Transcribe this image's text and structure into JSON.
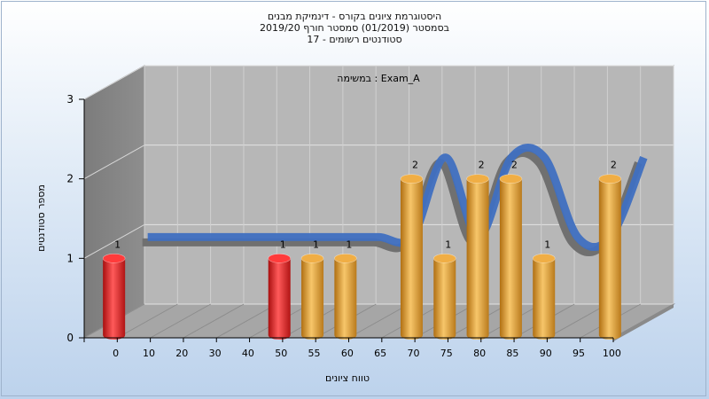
{
  "chart_data": {
    "type": "bar",
    "title_lines": [
      "היסטוגרמת ציונים בקורס - דינמיקת מבנים",
      "בסמסטר  (01/2019)  סמסטר חורף 2019/20",
      "סטודנטים רשומים - 17"
    ],
    "annotation": "Exam_A : במשימה",
    "xlabel": "טווח ציונים",
    "ylabel": "מספר סטודנטים",
    "ylim": [
      0,
      3
    ],
    "yticks": [
      "0",
      "1",
      "2",
      "3"
    ],
    "categories": [
      "0",
      "10",
      "20",
      "30",
      "40",
      "50",
      "55",
      "60",
      "65",
      "70",
      "75",
      "80",
      "85",
      "90",
      "95",
      "100"
    ],
    "values": [
      1,
      0,
      0,
      0,
      0,
      1,
      1,
      1,
      0,
      2,
      1,
      2,
      2,
      1,
      0,
      2
    ],
    "bar_colors": [
      "#e01e1e",
      "",
      "",
      "",
      "",
      "#e01e1e",
      "#e8a23a",
      "#e8a23a",
      "",
      "#e8a23a",
      "#e8a23a",
      "#e8a23a",
      "#e8a23a",
      "#e8a23a",
      "",
      "#e8a23a"
    ],
    "grid": true,
    "three_d": true,
    "trend_line_color": "#3f6fc0",
    "trend_shadow_color": "#707070"
  }
}
